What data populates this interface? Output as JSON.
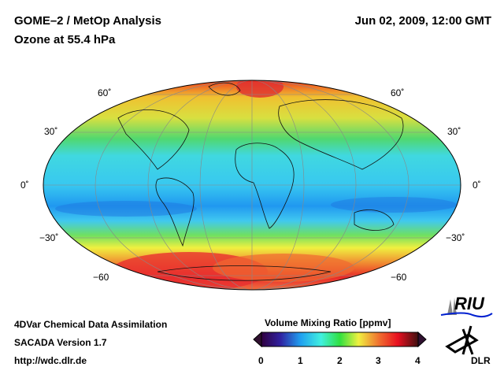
{
  "header": {
    "title": "GOME–2 / MetOp Analysis",
    "subtitle": "Ozone at 55.4 hPa",
    "datetime": "Jun 02, 2009, 12:00 GMT"
  },
  "map": {
    "lat_labels_left": [
      "60˚",
      "30˚",
      "0˚",
      "−30˚",
      "−60"
    ],
    "lat_labels_right": [
      "60˚",
      "30˚",
      "0˚",
      "−30˚",
      "−60"
    ]
  },
  "footer": {
    "line1": "4DVar Chemical Data Assimilation",
    "line2": "SACADA Version 1.7",
    "line3": "http://wdc.dlr.de"
  },
  "colorbar": {
    "title": "Volume Mixing Ratio [ppmv]",
    "ticks": [
      "0",
      "1",
      "2",
      "3",
      "4"
    ],
    "min": 0,
    "max": 4
  },
  "logos": {
    "riu": "RIU",
    "dlr": "DLR"
  }
}
